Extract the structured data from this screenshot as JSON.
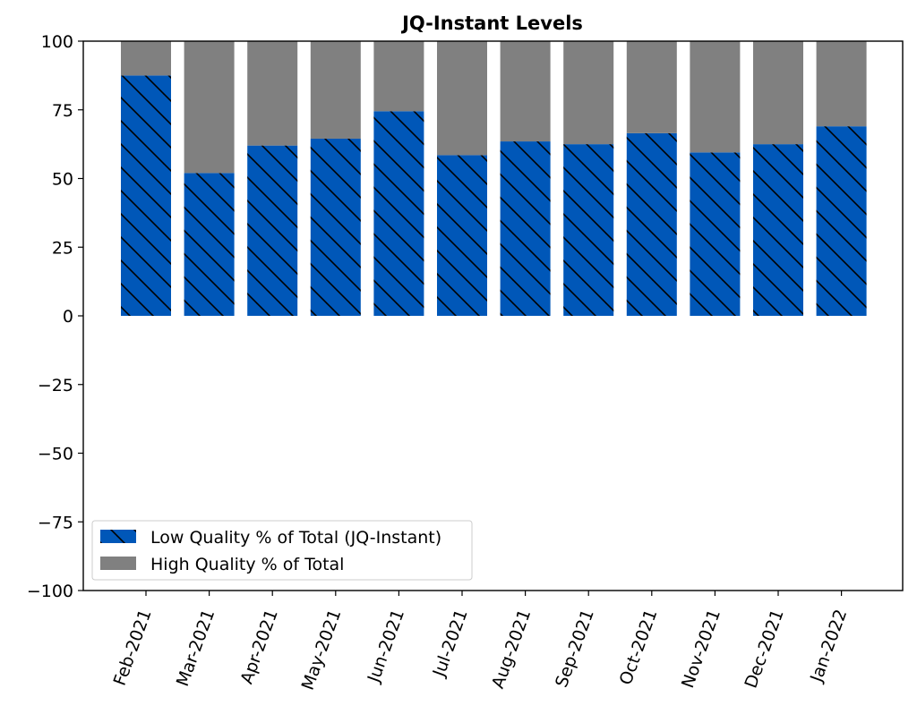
{
  "chart_data": {
    "type": "bar",
    "stacked": true,
    "title": "JQ-Instant Levels",
    "xlabel": "",
    "ylabel": "",
    "ylim": [
      -100,
      100
    ],
    "yticks": [
      100,
      75,
      50,
      25,
      0,
      -25,
      -50,
      -75,
      -100
    ],
    "ytick_labels": [
      "100",
      "75",
      "50",
      "25",
      "0",
      "−25",
      "−50",
      "−75",
      "−100"
    ],
    "categories": [
      "Feb-2021",
      "Mar-2021",
      "Apr-2021",
      "May-2021",
      "Jun-2021",
      "Jul-2021",
      "Aug-2021",
      "Sep-2021",
      "Oct-2021",
      "Nov-2021",
      "Dec-2021",
      "Jan-2022"
    ],
    "series": [
      {
        "name": "Low Quality % of Total (JQ-Instant)",
        "color": "#0057b8",
        "hatch": "diagonal",
        "values": [
          87.5,
          52,
          62,
          64.5,
          74.5,
          58.5,
          63.5,
          62.5,
          66.5,
          59.5,
          62.5,
          69
        ]
      },
      {
        "name": "High Quality % of Total",
        "color": "#808080",
        "values": [
          12.5,
          48,
          38,
          35.5,
          25.5,
          41.5,
          36.5,
          37.5,
          33.5,
          40.5,
          37.5,
          31
        ]
      }
    ],
    "legend_position": "lower-left",
    "grid": false
  }
}
